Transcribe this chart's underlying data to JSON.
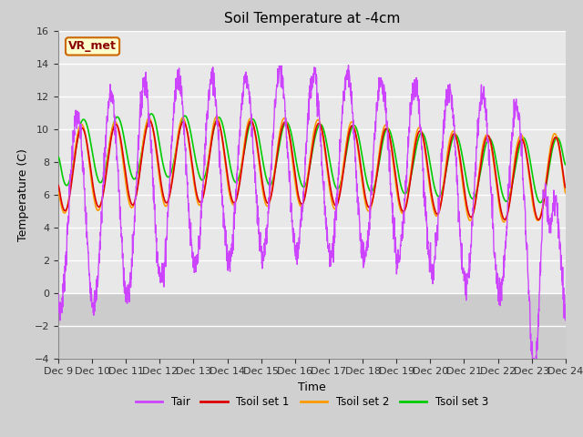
{
  "title": "Soil Temperature at -4cm",
  "xlabel": "Time",
  "ylabel": "Temperature (C)",
  "ylim": [
    -4,
    16
  ],
  "yticks": [
    -4,
    -2,
    0,
    2,
    4,
    6,
    8,
    10,
    12,
    14,
    16
  ],
  "fig_bg_color": "#d0d0d0",
  "plot_bg_color": "#e8e8e8",
  "below_zero_color": "#cccccc",
  "line_colors": {
    "Tair": "#cc44ff",
    "Tsoil1": "#dd0000",
    "Tsoil2": "#ff9900",
    "Tsoil3": "#00cc00"
  },
  "vr_met_label": "VR_met",
  "vr_met_bg": "#ffffcc",
  "vr_met_border": "#cc6600",
  "legend_labels": [
    "Tair",
    "Tsoil set 1",
    "Tsoil set 2",
    "Tsoil set 3"
  ],
  "xtick_labels": [
    "Dec 9",
    "Dec 10",
    "Dec 11",
    "Dec 12",
    "Dec 13",
    "Dec 14",
    "Dec 15",
    "Dec 16",
    "Dec 17",
    "Dec 18",
    "Dec 19",
    "Dec 20",
    "Dec 21",
    "Dec 22",
    "Dec 23",
    "Dec 24"
  ],
  "n_days": 15,
  "pts_per_day": 144
}
